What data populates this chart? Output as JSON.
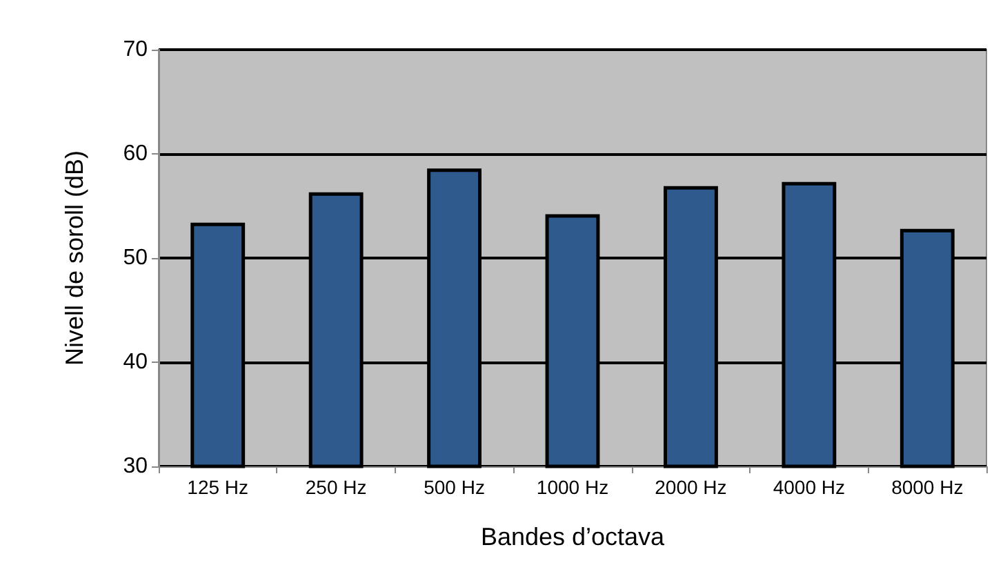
{
  "chart_data": {
    "type": "bar",
    "xlabel": "Bandes d’octava",
    "ylabel": "Nivell de soroll (dB)",
    "categories": [
      "125 Hz",
      "250 Hz",
      "500 Hz",
      "1000 Hz",
      "2000 Hz",
      "4000 Hz",
      "8000 Hz"
    ],
    "values": [
      53.4,
      56.3,
      58.6,
      54.2,
      56.9,
      57.3,
      52.8
    ],
    "color": "#2e5a8e",
    "ylim": [
      30,
      70
    ],
    "yticks": [
      30,
      40,
      50,
      60,
      70
    ],
    "grid": "y"
  }
}
